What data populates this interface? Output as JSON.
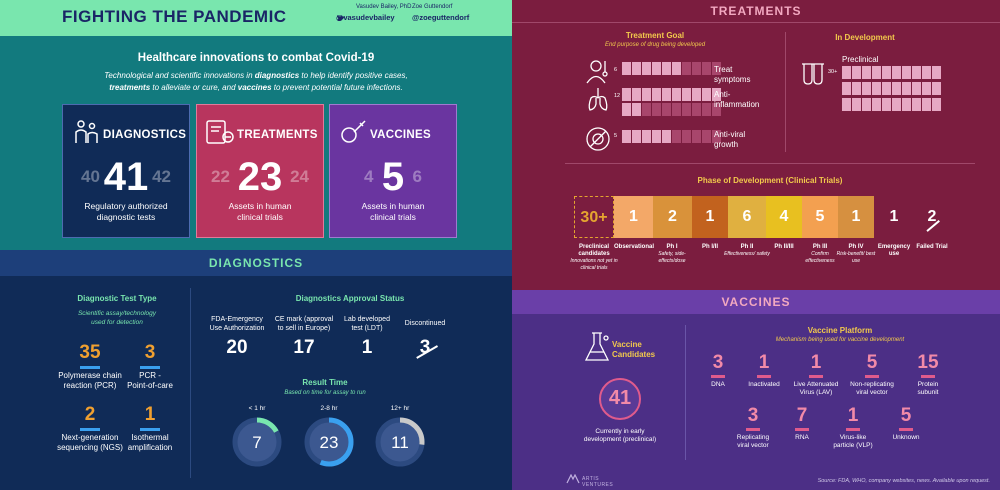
{
  "title": "FIGHTING THE PANDEMIC",
  "authors": [
    {
      "name": "Vasudev Bailey, PhD",
      "handle": "@vasudevbailey"
    },
    {
      "name": "Zoe Guttendorf",
      "handle": "@zoeguttendorf"
    }
  ],
  "intro": {
    "heading": "Healthcare innovations to combat Covid-19",
    "line1a": "Technological and scientific innovations in ",
    "line1b": "diagnostics",
    "line1c": " to help identify positive cases,",
    "line2a": "treatments",
    "line2b": " to alleviate or cure, and ",
    "line2c": "vaccines",
    "line2d": " to prevent potential future infections."
  },
  "cards": [
    {
      "name": "DIAGNOSTICS",
      "prev": "40",
      "value": "41",
      "next": "42",
      "caption1": "Regulatory authorized",
      "caption2": "diagnostic tests"
    },
    {
      "name": "TREATMENTS",
      "prev": "22",
      "value": "23",
      "next": "24",
      "caption1": "Assets in human",
      "caption2": "clinical trials"
    },
    {
      "name": "VACCINES",
      "prev": "4",
      "value": "5",
      "next": "6",
      "caption1": "Assets in human",
      "caption2": "clinical trials"
    }
  ],
  "diagnostics": {
    "band": "DIAGNOSTICS",
    "test_type": {
      "title": "Diagnostic Test Type",
      "sub1": "Scientific assay/technology",
      "sub2": "used for detection",
      "items": [
        {
          "value": "35",
          "l1": "Polymerase chain",
          "l2": "reaction (PCR)"
        },
        {
          "value": "3",
          "l1": "PCR -",
          "l2": "Point-of-care"
        },
        {
          "value": "2",
          "l1": "Next-generation",
          "l2": "sequencing (NGS)"
        },
        {
          "value": "1",
          "l1": "Isothermal",
          "l2": "amplification"
        }
      ]
    },
    "approval": {
      "title": "Diagnostics Approval Status",
      "items": [
        {
          "l1": "FDA-Emergency",
          "l2": "Use Authorization",
          "value": "20"
        },
        {
          "l1": "CE mark (approval",
          "l2": "to sell in Europe)",
          "value": "17"
        },
        {
          "l1": "Lab developed",
          "l2": "test (LDT)",
          "value": "1"
        },
        {
          "l1": "Discontinued",
          "l2": "",
          "value": "3"
        }
      ]
    },
    "result_time": {
      "title": "Result Time",
      "sub": "Based on time for assay to run",
      "items": [
        {
          "label": "< 1 hr",
          "value": "7"
        },
        {
          "label": "2-8 hr",
          "value": "23"
        },
        {
          "label": "12+ hr",
          "value": "11"
        }
      ]
    }
  },
  "treatments": {
    "band": "TREATMENTS",
    "goal": {
      "title": "Treatment Goal",
      "sub": "End purpose of drug being developed",
      "items": [
        {
          "count": "6",
          "l1": "Treat",
          "l2": "symptoms"
        },
        {
          "count": "12",
          "l1": "Anti-",
          "l2": "inflammation"
        },
        {
          "count": "5",
          "l1": "Anti-viral",
          "l2": "growth"
        }
      ]
    },
    "dev": {
      "title": "In Development",
      "label": "Preclinical",
      "count": "30+"
    },
    "phase_title": "Phase of Development (Clinical Trials)",
    "phases": [
      {
        "value": "30+",
        "l1": "Preclinical",
        "l2": "candidates",
        "sub": "Innovations not yet in clinical trials"
      },
      {
        "value": "1",
        "l1": "Observational",
        "l2": "",
        "sub": ""
      },
      {
        "value": "2",
        "l1": "Ph I",
        "l2": "",
        "sub": "Safety, side-effects/dose"
      },
      {
        "value": "1",
        "l1": "Ph I/II",
        "l2": "",
        "sub": ""
      },
      {
        "value": "6",
        "l1": "Ph II",
        "l2": "",
        "sub": "Effectiveness/ safety"
      },
      {
        "value": "4",
        "l1": "Ph II/III",
        "l2": "",
        "sub": ""
      },
      {
        "value": "5",
        "l1": "Ph III",
        "l2": "",
        "sub": "Confirm effectiveness"
      },
      {
        "value": "1",
        "l1": "Ph IV",
        "l2": "",
        "sub": "Risk-benefit/ best use"
      },
      {
        "value": "1",
        "l1": "Emergency",
        "l2": "use",
        "sub": ""
      },
      {
        "value": "2",
        "l1": "Failed Trial",
        "l2": "",
        "sub": ""
      }
    ]
  },
  "vaccines": {
    "band": "VACCINES",
    "candidates_title1": "Vaccine",
    "candidates_title2": "Candidates",
    "candidates": "41",
    "cand_l1": "Currently in early",
    "cand_l2": "development (preclinical)",
    "platform_title": "Vaccine Platform",
    "platform_sub": "Mechanism being used for vaccine development",
    "items": [
      {
        "value": "3",
        "l1": "DNA",
        "l2": ""
      },
      {
        "value": "1",
        "l1": "Inactivated",
        "l2": ""
      },
      {
        "value": "1",
        "l1": "Live Attenuated",
        "l2": "Virus (LAV)"
      },
      {
        "value": "5",
        "l1": "Non-replicating",
        "l2": "viral vector"
      },
      {
        "value": "15",
        "l1": "Protein",
        "l2": "subunit"
      },
      {
        "value": "3",
        "l1": "Replicating",
        "l2": "viral vector"
      },
      {
        "value": "7",
        "l1": "RNA",
        "l2": ""
      },
      {
        "value": "1",
        "l1": "Virus-like",
        "l2": "particle (VLP)"
      },
      {
        "value": "5",
        "l1": "Unknown",
        "l2": ""
      }
    ]
  },
  "logo": "ARTIS VENTURES",
  "source": "Source: FDA, WHO, company websites, news. Available upon request.",
  "chart_data": [
    {
      "type": "bar",
      "title": "Diagnostic Test Type",
      "categories": [
        "Polymerase chain reaction (PCR)",
        "PCR - Point-of-care",
        "Next-generation sequencing (NGS)",
        "Isothermal amplification"
      ],
      "values": [
        35,
        3,
        2,
        1
      ]
    },
    {
      "type": "bar",
      "title": "Diagnostics Approval Status",
      "categories": [
        "FDA-Emergency Use Authorization",
        "CE mark (approval to sell in Europe)",
        "Lab developed test (LDT)",
        "Discontinued"
      ],
      "values": [
        20,
        17,
        1,
        3
      ]
    },
    {
      "type": "pie",
      "title": "Result Time",
      "categories": [
        "< 1 hr",
        "2-8 hr",
        "12+ hr"
      ],
      "values": [
        7,
        23,
        11
      ]
    },
    {
      "type": "bar",
      "title": "Treatment Goal",
      "categories": [
        "Treat symptoms",
        "Anti-inflammation",
        "Anti-viral growth"
      ],
      "values": [
        6,
        12,
        5
      ]
    },
    {
      "type": "bar",
      "title": "Phase of Development (Clinical Trials)",
      "categories": [
        "Preclinical candidates",
        "Observational",
        "Ph I",
        "Ph I/II",
        "Ph II",
        "Ph II/III",
        "Ph III",
        "Ph IV",
        "Emergency use",
        "Failed Trial"
      ],
      "values": [
        30,
        1,
        2,
        1,
        6,
        4,
        5,
        1,
        1,
        2
      ]
    },
    {
      "type": "bar",
      "title": "Vaccine Platform",
      "categories": [
        "DNA",
        "Inactivated",
        "Live Attenuated Virus (LAV)",
        "Non-replicating viral vector",
        "Protein subunit",
        "Replicating viral vector",
        "RNA",
        "Virus-like particle (VLP)",
        "Unknown"
      ],
      "values": [
        3,
        1,
        1,
        5,
        15,
        3,
        7,
        1,
        5
      ]
    }
  ],
  "colors": {
    "header": "#79e6ae",
    "teal": "#127a7e",
    "navy": "#102b57",
    "orange": "#f0a030",
    "blue": "#3aa0ef",
    "treat": "#7b1d3f",
    "vacc": "#4c2f86",
    "pink": "#e05b8c"
  }
}
